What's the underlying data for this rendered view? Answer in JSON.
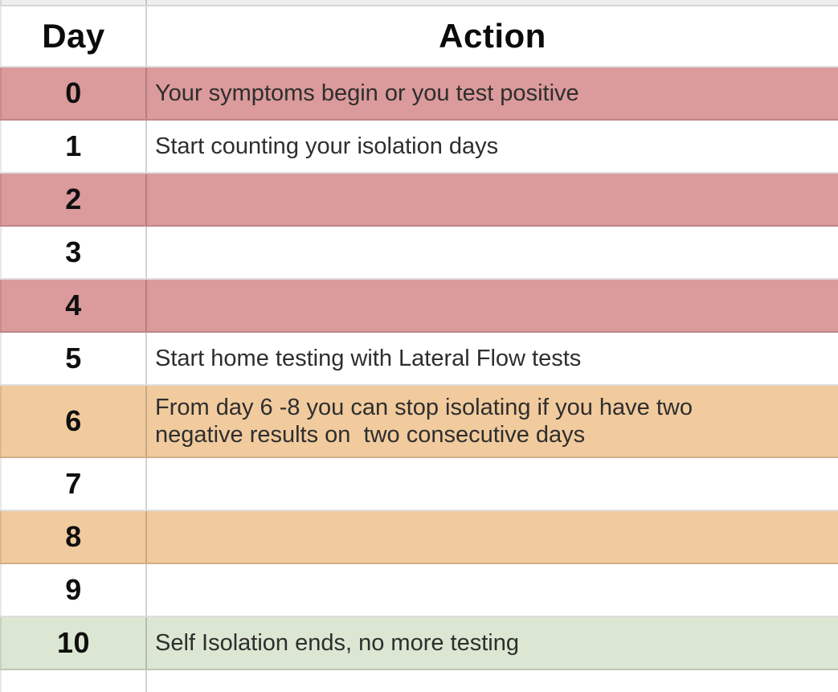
{
  "table": {
    "header": {
      "day": "Day",
      "action": "Action"
    },
    "rows": [
      {
        "day": "0",
        "action": "Your symptoms begin or you test positive",
        "color": "pink"
      },
      {
        "day": "1",
        "action": "Start counting your isolation days",
        "color": "white"
      },
      {
        "day": "2",
        "action": "",
        "color": "pink"
      },
      {
        "day": "3",
        "action": "",
        "color": "white"
      },
      {
        "day": "4",
        "action": "",
        "color": "pink"
      },
      {
        "day": "5",
        "action": "Start home testing with Lateral Flow tests",
        "color": "white"
      },
      {
        "day": "6",
        "action": "From day 6 -8 you can stop isolating if you have two\nnegative results on  two consecutive days",
        "color": "orange"
      },
      {
        "day": "7",
        "action": "",
        "color": "white"
      },
      {
        "day": "8",
        "action": "",
        "color": "orange"
      },
      {
        "day": "9",
        "action": "",
        "color": "white"
      },
      {
        "day": "10",
        "action": "Self Isolation ends, no more testing",
        "color": "green"
      }
    ],
    "colors": {
      "pink": "#db9a9b",
      "orange": "#f1cb9e",
      "green": "#dbe7d2",
      "white": "#ffffff"
    }
  },
  "page": {
    "clipped_row_color": "#eeeeee"
  }
}
